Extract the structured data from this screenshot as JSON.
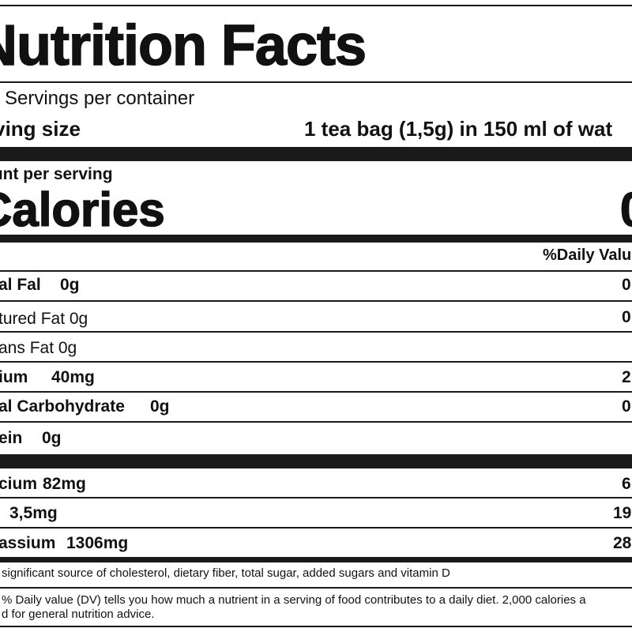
{
  "label": {
    "title": "Nutrition Facts",
    "servings": "Servings per container",
    "serving_size_label": "rving size",
    "serving_size_value": "1 tea bag (1,5g) in 150 ml of wat",
    "amount_per_serving": "ount per serving",
    "calories_label": "Calories",
    "calories_value": "0",
    "daily_value_header": "%Daily Valu",
    "nutrients": [
      {
        "name": "al Fal",
        "amount": "0g",
        "dv": "0"
      },
      {
        "name": "tured Fat 0g",
        "amount": "",
        "dv": "0"
      },
      {
        "name": "ans Fat 0g",
        "amount": "",
        "dv": ""
      },
      {
        "name": "ium",
        "amount": "40mg",
        "dv": "2"
      },
      {
        "name": "al Carbohydrate",
        "amount": "0g",
        "dv": "0"
      },
      {
        "name": "ein",
        "amount": "0g",
        "dv": ""
      }
    ],
    "minerals": [
      {
        "name": "cium",
        "amount": "82mg",
        "dv": "6"
      },
      {
        "name": "",
        "amount": "3,5mg",
        "dv": "19"
      },
      {
        "name": "assium",
        "amount": "1306mg",
        "dv": "28"
      }
    ],
    "footnote_1": "significant source of cholesterol, dietary fiber, total sugar, added sugars and vitamin D",
    "footnote_2a": "% Daily value (DV) tells you how much a nutrient in a serving of food contributes to a daily diet. 2,000 calories a",
    "footnote_2b": "d for general nutrition advice."
  }
}
